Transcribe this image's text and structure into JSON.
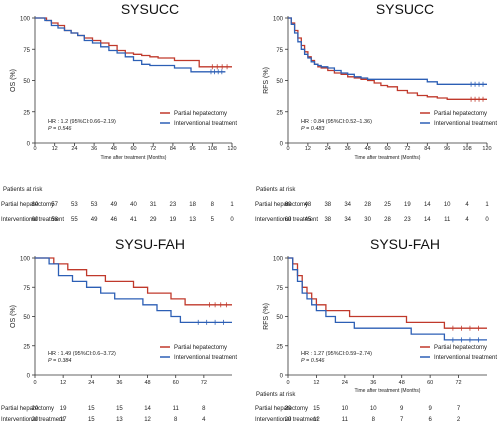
{
  "chart_data": [
    {
      "type": "line",
      "subtype": "kaplan-meier",
      "title": "SYSUCC",
      "xlabel": "Time after treatment (Months)",
      "ylabel": "OS (%)",
      "xlim": [
        0,
        120
      ],
      "ylim": [
        0,
        100
      ],
      "xticks": [
        "0",
        "12",
        "24",
        "36",
        "48",
        "60",
        "72",
        "84",
        "96",
        "108",
        "120"
      ],
      "yticks": [
        "0",
        "25",
        "50",
        "75",
        "100"
      ],
      "annotation": [
        "HR : 1.2 (95%CI:0.66–2.19)",
        "P = 0.546"
      ],
      "risk_title": "Patients at risk",
      "series": [
        {
          "name": "Partial hepatectomy",
          "color": "#c0392b",
          "x": [
            0,
            4,
            7,
            10,
            14,
            18,
            22,
            26,
            30,
            35,
            40,
            45,
            50,
            55,
            60,
            65,
            70,
            75,
            80,
            85,
            90,
            95,
            100,
            105,
            110,
            120
          ],
          "y": [
            100,
            100,
            98,
            96,
            94,
            90,
            88,
            86,
            84,
            82,
            80,
            78,
            74,
            72,
            71,
            70,
            69,
            68,
            68,
            66,
            66,
            66,
            61,
            61,
            61,
            61
          ],
          "risk": [
            "60",
            "57",
            "53",
            "53",
            "49",
            "40",
            "31",
            "23",
            "18",
            "8",
            "1"
          ]
        },
        {
          "name": "Interventional treatment",
          "color": "#2c5fb5",
          "x": [
            0,
            6,
            10,
            14,
            18,
            22,
            26,
            30,
            35,
            40,
            45,
            50,
            55,
            60,
            65,
            70,
            75,
            80,
            85,
            90,
            95,
            100,
            105,
            110,
            116
          ],
          "y": [
            100,
            98,
            94,
            92,
            90,
            88,
            86,
            82,
            80,
            77,
            74,
            72,
            69,
            66,
            63,
            62,
            62,
            62,
            60,
            60,
            57,
            57,
            57,
            57,
            57
          ],
          "risk": [
            "60",
            "58",
            "55",
            "49",
            "46",
            "41",
            "29",
            "19",
            "13",
            "5",
            "0"
          ]
        }
      ]
    },
    {
      "type": "line",
      "subtype": "kaplan-meier",
      "title": "SYSUCC",
      "xlabel": "Time after treatment (Months)",
      "ylabel": "RFS (%)",
      "xlim": [
        0,
        120
      ],
      "ylim": [
        0,
        100
      ],
      "xticks": [
        "0",
        "12",
        "24",
        "36",
        "48",
        "60",
        "72",
        "84",
        "96",
        "108",
        "120"
      ],
      "yticks": [
        "0",
        "25",
        "50",
        "75",
        "100"
      ],
      "annotation": [
        "HR : 0.84 (95%CI:0.52–1.36)",
        "P = 0.483"
      ],
      "risk_title": "Patients at risk",
      "series": [
        {
          "name": "Partial hepatectomy",
          "color": "#c0392b",
          "x": [
            0,
            2,
            4,
            6,
            8,
            10,
            12,
            14,
            16,
            18,
            20,
            24,
            28,
            32,
            36,
            40,
            44,
            48,
            52,
            56,
            60,
            66,
            72,
            78,
            84,
            90,
            96,
            102,
            108,
            114,
            120
          ],
          "y": [
            100,
            96,
            90,
            84,
            78,
            73,
            69,
            66,
            63,
            61,
            60,
            58,
            56,
            55,
            53,
            52,
            51,
            50,
            48,
            46,
            45,
            42,
            40,
            38,
            37,
            36,
            35,
            35,
            35,
            35,
            35
          ],
          "risk": [
            "60",
            "48",
            "38",
            "34",
            "28",
            "25",
            "19",
            "14",
            "10",
            "4",
            "1"
          ]
        },
        {
          "name": "Interventional treatment",
          "color": "#2c5fb5",
          "x": [
            0,
            2,
            4,
            6,
            8,
            10,
            12,
            14,
            16,
            18,
            20,
            24,
            28,
            32,
            36,
            40,
            44,
            48,
            54,
            60,
            66,
            72,
            78,
            84,
            90,
            96,
            102,
            108,
            114,
            120
          ],
          "y": [
            100,
            95,
            88,
            81,
            75,
            71,
            68,
            65,
            63,
            62,
            61,
            60,
            58,
            56,
            55,
            53,
            52,
            51,
            51,
            51,
            51,
            51,
            51,
            49,
            47,
            47,
            47,
            47,
            47,
            47
          ],
          "risk": [
            "60",
            "45",
            "38",
            "34",
            "30",
            "28",
            "23",
            "14",
            "11",
            "4",
            "0"
          ]
        }
      ]
    },
    {
      "type": "line",
      "subtype": "kaplan-meier",
      "title": "SYSU-FAH",
      "xlabel": "",
      "ylabel": "OS (%)",
      "xlim": [
        0,
        84
      ],
      "ylim": [
        0,
        100
      ],
      "xticks": [
        "0",
        "12",
        "24",
        "36",
        "48",
        "60",
        "72"
      ],
      "yticks": [
        "0",
        "25",
        "50",
        "75",
        "100"
      ],
      "annotation": [
        "HR : 1.49 (95%CI:0.6–3.72)",
        "P = 0.384"
      ],
      "risk_title": "",
      "series": [
        {
          "name": "Partial hepatectomy",
          "color": "#c0392b",
          "x": [
            0,
            8,
            14,
            22,
            30,
            36,
            42,
            48,
            52,
            58,
            64,
            72,
            80,
            84
          ],
          "y": [
            100,
            95,
            90,
            85,
            80,
            80,
            75,
            70,
            70,
            65,
            60,
            60,
            60,
            60
          ],
          "risk": [
            "20",
            "19",
            "15",
            "15",
            "14",
            "11",
            "8"
          ]
        },
        {
          "name": "Interventional treatment",
          "color": "#2c5fb5",
          "x": [
            0,
            6,
            10,
            16,
            22,
            28,
            34,
            40,
            46,
            52,
            58,
            62,
            66,
            72,
            84
          ],
          "y": [
            100,
            95,
            85,
            80,
            75,
            70,
            65,
            65,
            60,
            55,
            50,
            45,
            45,
            45,
            45
          ],
          "risk": [
            "20",
            "17",
            "15",
            "13",
            "12",
            "8",
            "4"
          ]
        }
      ]
    },
    {
      "type": "line",
      "subtype": "kaplan-meier",
      "title": "SYSU-FAH",
      "xlabel": "Time after treatment (Months)",
      "ylabel": "RFS (%)",
      "xlim": [
        0,
        84
      ],
      "ylim": [
        0,
        100
      ],
      "xticks": [
        "0",
        "12",
        "24",
        "36",
        "48",
        "60",
        "72"
      ],
      "yticks": [
        "0",
        "25",
        "50",
        "75",
        "100"
      ],
      "annotation": [
        "HR : 1.27 (95%CI:0.59–2.74)",
        "P = 0.546"
      ],
      "risk_title": "Patients at risk",
      "series": [
        {
          "name": "Partial hepatectomy",
          "color": "#c0392b",
          "x": [
            0,
            2,
            4,
            6,
            8,
            10,
            12,
            16,
            20,
            26,
            32,
            38,
            44,
            50,
            56,
            62,
            66,
            70,
            84
          ],
          "y": [
            100,
            95,
            85,
            75,
            70,
            65,
            60,
            55,
            55,
            50,
            50,
            50,
            50,
            45,
            45,
            45,
            40,
            40,
            40
          ],
          "risk": [
            "20",
            "15",
            "10",
            "10",
            "9",
            "9",
            "7"
          ]
        },
        {
          "name": "Interventional treatment",
          "color": "#2c5fb5",
          "x": [
            0,
            2,
            4,
            6,
            8,
            10,
            12,
            16,
            20,
            28,
            36,
            44,
            52,
            60,
            66,
            70,
            84
          ],
          "y": [
            100,
            90,
            80,
            70,
            65,
            60,
            55,
            50,
            45,
            40,
            40,
            40,
            35,
            35,
            30,
            30,
            30
          ],
          "risk": [
            "20",
            "12",
            "11",
            "8",
            "7",
            "6",
            "2"
          ]
        }
      ]
    }
  ]
}
